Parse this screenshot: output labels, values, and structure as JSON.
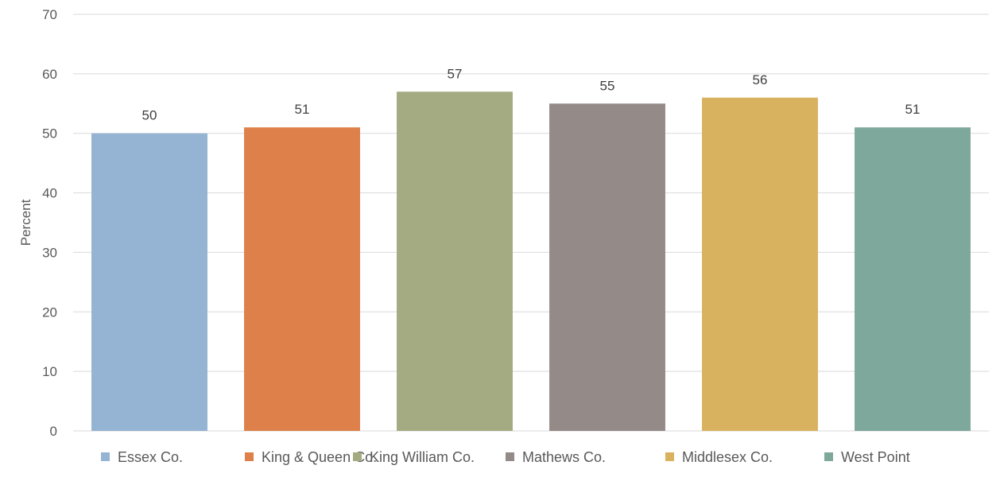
{
  "chart_data": {
    "type": "bar",
    "categories": [
      "Essex Co.",
      "King & Queen Co.",
      "King William Co.",
      "Mathews Co.",
      "Middlesex Co.",
      "West Point"
    ],
    "values": [
      50,
      51,
      57,
      55,
      56,
      51
    ],
    "colors": [
      "#95b3d2",
      "#de8049",
      "#a4aa81",
      "#948a88",
      "#d8b25e",
      "#7da89b"
    ],
    "xlabel": "",
    "ylabel": "Percent",
    "ylim": [
      0,
      70
    ],
    "yticks": [
      0,
      10,
      20,
      30,
      40,
      50,
      60,
      70
    ],
    "grid": true,
    "legend_position": "bottom",
    "data_labels": true
  }
}
